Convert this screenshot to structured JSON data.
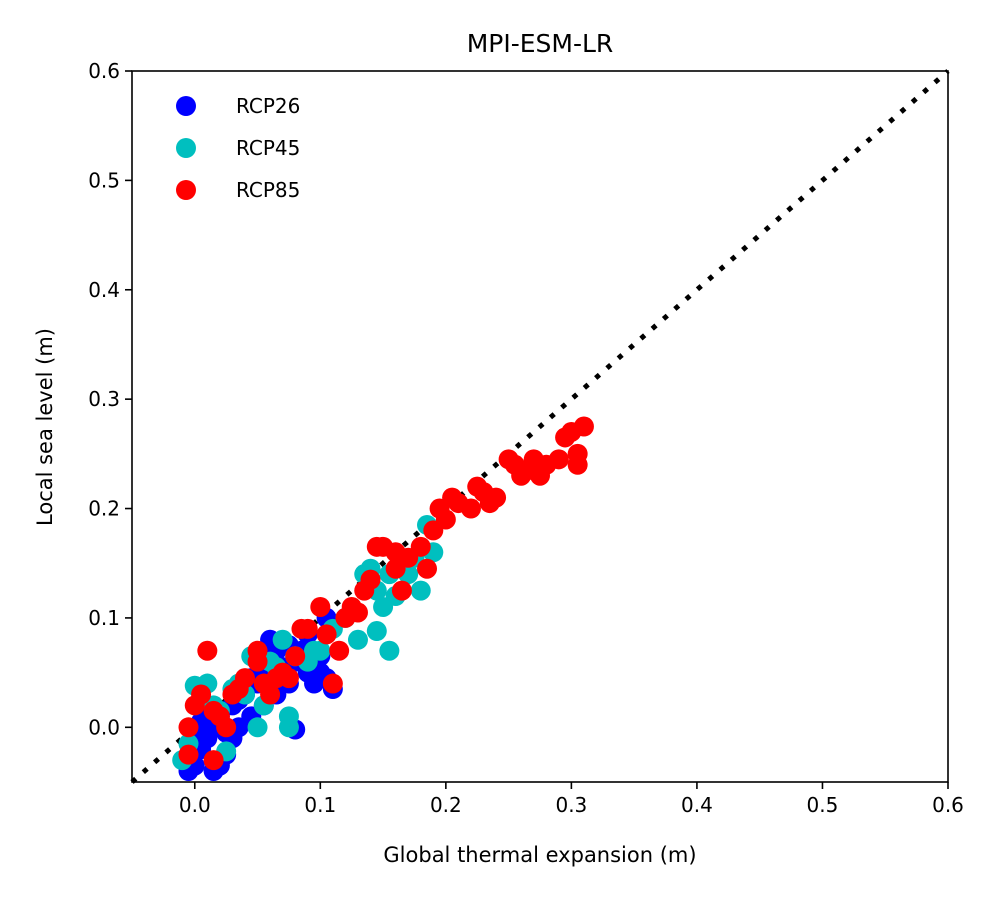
{
  "chart_data": {
    "type": "scatter",
    "title": "MPI-ESM-LR",
    "xlabel": "Global thermal expansion (m)",
    "ylabel": "Local sea level (m)",
    "xlim": [
      -0.05,
      0.6
    ],
    "ylim": [
      -0.05,
      0.6
    ],
    "xticks": [
      "0.0",
      "0.1",
      "0.2",
      "0.3",
      "0.4",
      "0.5",
      "0.6"
    ],
    "yticks": [
      "0.0",
      "0.1",
      "0.2",
      "0.3",
      "0.4",
      "0.5",
      "0.6"
    ],
    "grid": false,
    "legend_position": "top-left",
    "reference_line": {
      "style": "dotted",
      "color": "#000000",
      "from": [
        -0.05,
        -0.05
      ],
      "to": [
        0.6,
        0.6
      ]
    },
    "series": [
      {
        "name": "RCP26",
        "color": "#0000ff",
        "points": [
          [
            -0.005,
            -0.04
          ],
          [
            0.0,
            -0.035
          ],
          [
            0.005,
            -0.02
          ],
          [
            0.01,
            -0.01
          ],
          [
            0.015,
            -0.04
          ],
          [
            0.02,
            -0.035
          ],
          [
            0.025,
            -0.025
          ],
          [
            0.03,
            -0.01
          ],
          [
            0.035,
            0.0
          ],
          [
            0.0,
            -0.01
          ],
          [
            0.005,
            0.005
          ],
          [
            0.01,
            0.02
          ],
          [
            0.02,
            0.01
          ],
          [
            0.03,
            0.02
          ],
          [
            0.04,
            0.03
          ],
          [
            0.045,
            0.01
          ],
          [
            0.05,
            0.04
          ],
          [
            0.055,
            0.05
          ],
          [
            0.06,
            0.08
          ],
          [
            0.065,
            0.07
          ],
          [
            0.07,
            0.055
          ],
          [
            0.075,
            0.04
          ],
          [
            0.08,
            0.06
          ],
          [
            0.085,
            0.07
          ],
          [
            0.09,
            0.085
          ],
          [
            0.095,
            0.04
          ],
          [
            0.1,
            0.05
          ],
          [
            0.105,
            0.045
          ],
          [
            0.11,
            0.035
          ],
          [
            0.105,
            0.1
          ],
          [
            0.08,
            -0.002
          ],
          [
            0.065,
            0.03
          ],
          [
            0.055,
            0.02
          ],
          [
            0.045,
            0.045
          ],
          [
            0.035,
            0.025
          ],
          [
            0.025,
            -0.005
          ],
          [
            0.015,
            0.0
          ],
          [
            0.075,
            0.075
          ],
          [
            0.09,
            0.05
          ],
          [
            0.1,
            0.065
          ]
        ]
      },
      {
        "name": "RCP45",
        "color": "#00bfbf",
        "points": [
          [
            -0.01,
            -0.03
          ],
          [
            -0.005,
            -0.015
          ],
          [
            0.0,
            0.038
          ],
          [
            0.01,
            0.04
          ],
          [
            0.015,
            0.02
          ],
          [
            0.02,
            0.015
          ],
          [
            0.025,
            -0.022
          ],
          [
            0.03,
            0.035
          ],
          [
            0.035,
            0.04
          ],
          [
            0.04,
            0.03
          ],
          [
            0.045,
            0.065
          ],
          [
            0.05,
            0.0
          ],
          [
            0.055,
            0.02
          ],
          [
            0.06,
            0.06
          ],
          [
            0.065,
            0.055
          ],
          [
            0.07,
            0.08
          ],
          [
            0.075,
            0.0
          ],
          [
            0.075,
            0.01
          ],
          [
            0.08,
            0.065
          ],
          [
            0.09,
            0.06
          ],
          [
            0.095,
            0.07
          ],
          [
            0.1,
            0.07
          ],
          [
            0.11,
            0.09
          ],
          [
            0.12,
            0.1
          ],
          [
            0.125,
            0.105
          ],
          [
            0.13,
            0.08
          ],
          [
            0.135,
            0.14
          ],
          [
            0.14,
            0.145
          ],
          [
            0.145,
            0.088
          ],
          [
            0.15,
            0.11
          ],
          [
            0.155,
            0.07
          ],
          [
            0.16,
            0.12
          ],
          [
            0.165,
            0.15
          ],
          [
            0.17,
            0.14
          ],
          [
            0.175,
            0.155
          ],
          [
            0.18,
            0.125
          ],
          [
            0.185,
            0.185
          ],
          [
            0.19,
            0.16
          ],
          [
            0.145,
            0.125
          ],
          [
            0.155,
            0.14
          ]
        ]
      },
      {
        "name": "RCP85",
        "color": "#ff0000",
        "points": [
          [
            -0.005,
            0.0
          ],
          [
            -0.005,
            -0.025
          ],
          [
            0.0,
            0.02
          ],
          [
            0.005,
            0.03
          ],
          [
            0.01,
            0.07
          ],
          [
            0.015,
            0.015
          ],
          [
            0.015,
            -0.03
          ],
          [
            0.02,
            0.01
          ],
          [
            0.025,
            0.0
          ],
          [
            0.03,
            0.03
          ],
          [
            0.035,
            0.035
          ],
          [
            0.04,
            0.045
          ],
          [
            0.05,
            0.06
          ],
          [
            0.05,
            0.07
          ],
          [
            0.055,
            0.04
          ],
          [
            0.06,
            0.03
          ],
          [
            0.065,
            0.045
          ],
          [
            0.07,
            0.05
          ],
          [
            0.075,
            0.045
          ],
          [
            0.08,
            0.065
          ],
          [
            0.085,
            0.09
          ],
          [
            0.09,
            0.09
          ],
          [
            0.1,
            0.11
          ],
          [
            0.105,
            0.085
          ],
          [
            0.11,
            0.04
          ],
          [
            0.115,
            0.07
          ],
          [
            0.12,
            0.1
          ],
          [
            0.125,
            0.11
          ],
          [
            0.13,
            0.105
          ],
          [
            0.135,
            0.125
          ],
          [
            0.14,
            0.135
          ],
          [
            0.145,
            0.165
          ],
          [
            0.15,
            0.165
          ],
          [
            0.16,
            0.16
          ],
          [
            0.16,
            0.145
          ],
          [
            0.165,
            0.125
          ],
          [
            0.17,
            0.155
          ],
          [
            0.18,
            0.165
          ],
          [
            0.185,
            0.145
          ],
          [
            0.19,
            0.18
          ],
          [
            0.195,
            0.2
          ],
          [
            0.2,
            0.19
          ],
          [
            0.205,
            0.21
          ],
          [
            0.21,
            0.205
          ],
          [
            0.22,
            0.2
          ],
          [
            0.225,
            0.22
          ],
          [
            0.23,
            0.215
          ],
          [
            0.235,
            0.205
          ],
          [
            0.24,
            0.21
          ],
          [
            0.25,
            0.245
          ],
          [
            0.255,
            0.24
          ],
          [
            0.26,
            0.23
          ],
          [
            0.265,
            0.235
          ],
          [
            0.27,
            0.245
          ],
          [
            0.275,
            0.23
          ],
          [
            0.28,
            0.24
          ],
          [
            0.29,
            0.245
          ],
          [
            0.295,
            0.265
          ],
          [
            0.3,
            0.27
          ],
          [
            0.305,
            0.25
          ],
          [
            0.305,
            0.24
          ],
          [
            0.31,
            0.275
          ]
        ]
      }
    ]
  }
}
